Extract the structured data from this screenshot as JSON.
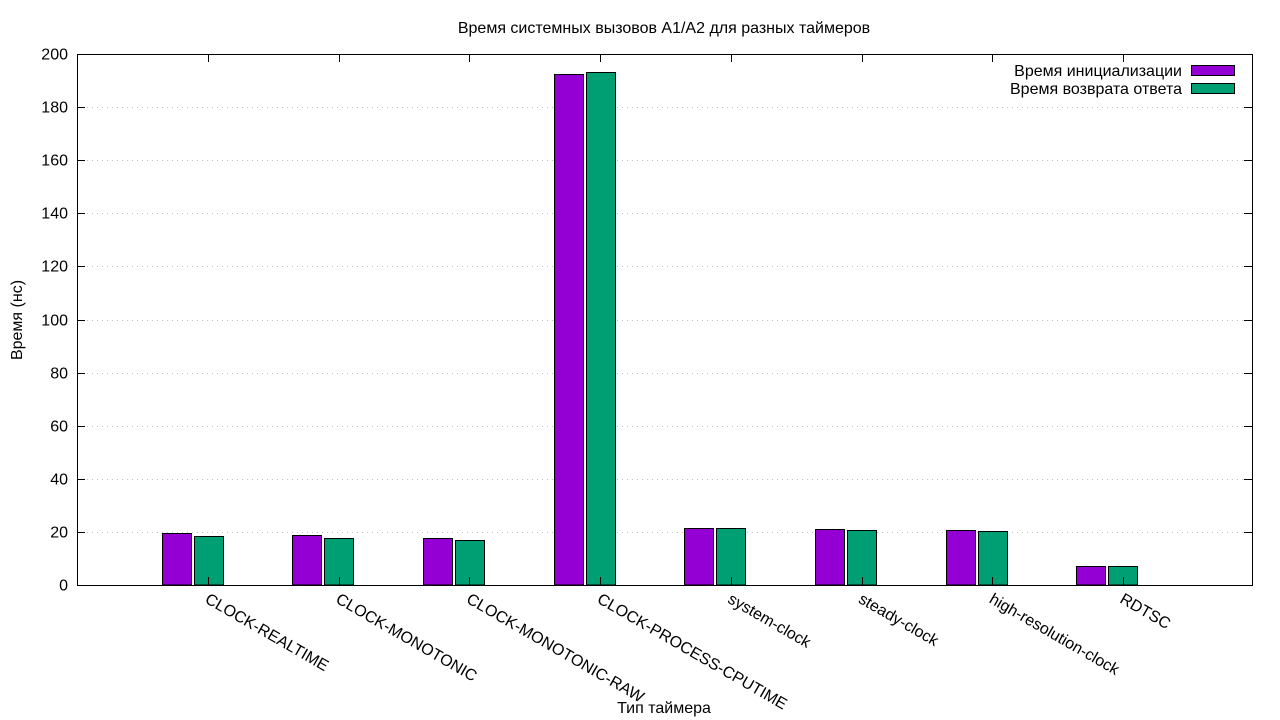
{
  "chart_data": {
    "type": "bar",
    "title": "Время системных вызовов A1/A2 для разных таймеров",
    "xlabel": "Тип таймера",
    "ylabel": "Время (нс)",
    "ylim": [
      0,
      200
    ],
    "yticks": [
      0,
      20,
      40,
      60,
      80,
      100,
      120,
      140,
      160,
      180,
      200
    ],
    "grid": true,
    "legend_position": "top-right",
    "categories": [
      "CLOCK-REALTIME",
      "CLOCK-MONOTONIC",
      "CLOCK-MONOTONIC-RAW",
      "CLOCK-PROCESS-CPUTIME",
      "system-clock",
      "steady-clock",
      "high-resolution-clock",
      "RDTSC"
    ],
    "series": [
      {
        "name": "Время инициализации",
        "color": "#9400d3",
        "values": [
          19.5,
          18.7,
          17.6,
          192.3,
          21.4,
          21.1,
          20.7,
          7.0
        ]
      },
      {
        "name": "Время возврата ответа",
        "color": "#009e73",
        "values": [
          18.4,
          17.7,
          16.8,
          193.1,
          21.4,
          20.8,
          20.3,
          7.0
        ]
      }
    ]
  }
}
